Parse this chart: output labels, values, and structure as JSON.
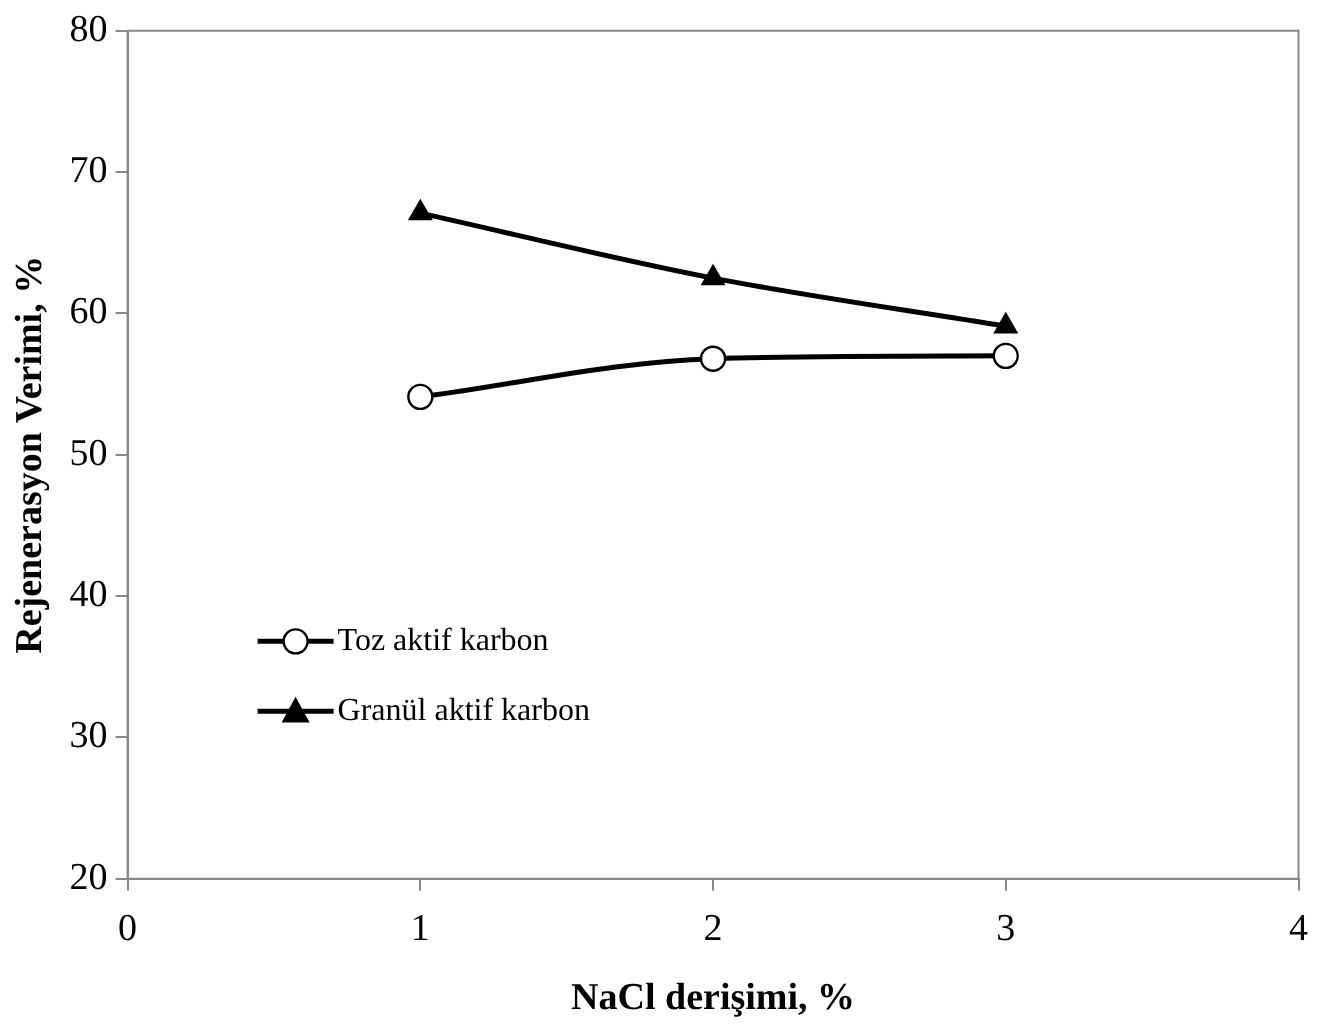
{
  "chart_data": {
    "type": "line",
    "xlabel": "NaCl derişimi, %",
    "ylabel": "Rejenerasyon Verimi, %",
    "xlim": [
      0,
      4
    ],
    "xticks": [
      0,
      1,
      2,
      3,
      4
    ],
    "ylim": [
      20,
      80
    ],
    "yticks": [
      20,
      30,
      40,
      50,
      60,
      70,
      80
    ],
    "grid": false,
    "legend": "left",
    "series": [
      {
        "name": "Toz aktif karbon",
        "color": "#000000",
        "marker": "circle",
        "x": [
          1,
          2,
          3
        ],
        "values": [
          54.1,
          56.8,
          57.0
        ]
      },
      {
        "name": "Granül aktif karbon",
        "color": "#000000",
        "marker": "triangle",
        "x": [
          1,
          2,
          3
        ],
        "values": [
          67.1,
          62.5,
          59.1
        ]
      }
    ]
  }
}
